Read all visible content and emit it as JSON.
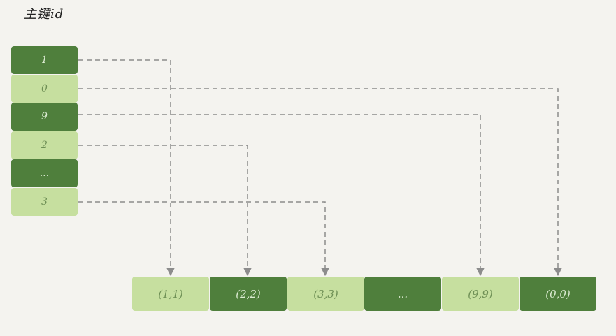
{
  "title": "主键id",
  "index": {
    "keys": [
      "1",
      "0",
      "9",
      "2",
      "...",
      "3"
    ],
    "shades": [
      "dark",
      "light",
      "dark",
      "light",
      "dark",
      "light"
    ]
  },
  "rows": {
    "values": [
      "(1,1)",
      "(2,2)",
      "(3,3)",
      "...",
      "(9,9)",
      "(0,0)"
    ],
    "shades": [
      "light",
      "dark",
      "light",
      "dark",
      "light",
      "dark"
    ]
  },
  "links": [
    {
      "from_key": "1",
      "to_row": "(1,1)"
    },
    {
      "from_key": "0",
      "to_row": "(0,0)"
    },
    {
      "from_key": "9",
      "to_row": "(9,9)"
    },
    {
      "from_key": "2",
      "to_row": "(2,2)"
    },
    {
      "from_key": "3",
      "to_row": "(3,3)"
    }
  ],
  "colors": {
    "dark_cell": "#4f7f3c",
    "light_cell": "#c6df9f",
    "dashed_line": "#8c8c8c",
    "background": "#f4f3ef"
  }
}
